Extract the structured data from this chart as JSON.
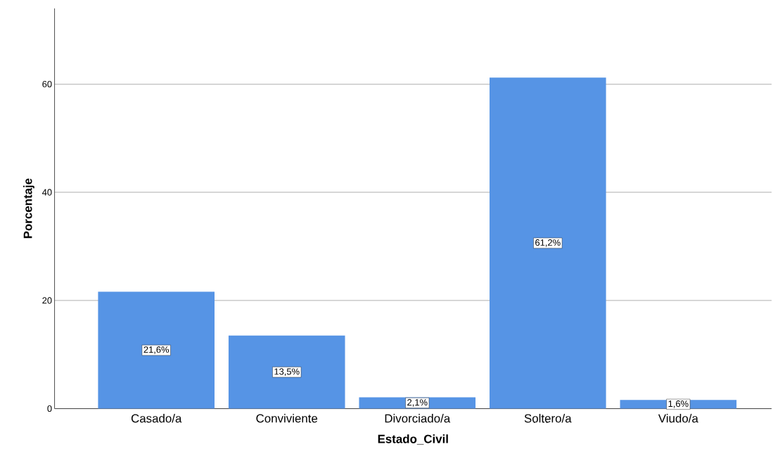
{
  "chart_data": {
    "type": "bar",
    "xlabel": "Estado_Civil",
    "ylabel": "Porcentaje",
    "categories": [
      "Casado/a",
      "Conviviente",
      "Divorciado/a",
      "Soltero/a",
      "Viudo/a"
    ],
    "values": [
      21.6,
      13.5,
      2.1,
      61.2,
      1.6
    ],
    "value_labels": [
      "21,6%",
      "13,5%",
      "2,1%",
      "61,2%",
      "1,6%"
    ],
    "color": "#5694e5",
    "ylim": [
      0,
      74
    ],
    "yticks": [
      0,
      20,
      40,
      60
    ],
    "grid": "y"
  }
}
